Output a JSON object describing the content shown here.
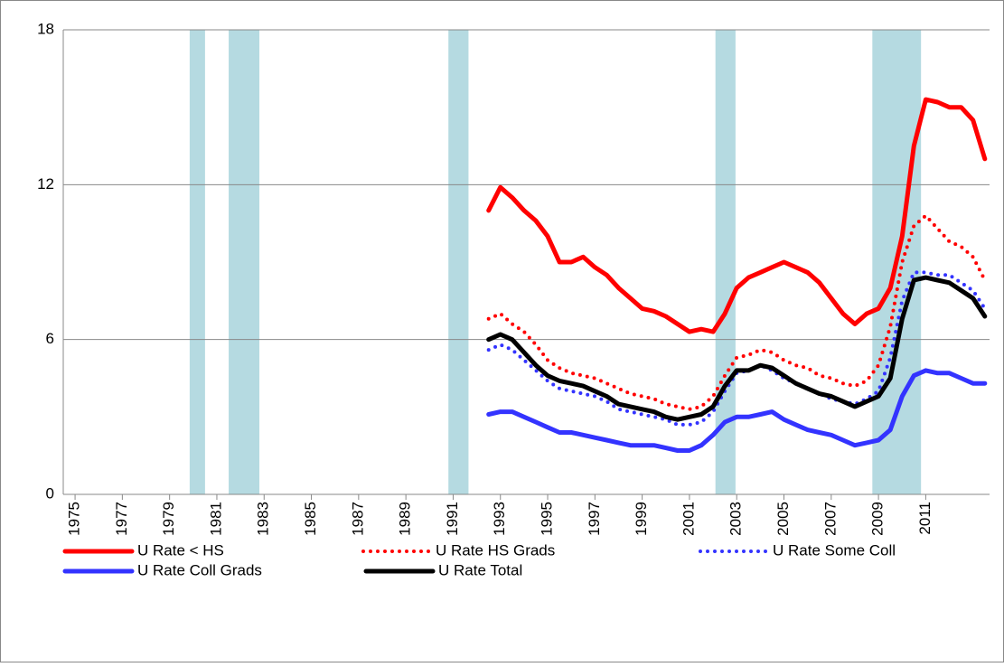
{
  "chart_data": {
    "type": "line",
    "x": [
      1992.5,
      1993,
      1993.5,
      1994,
      1994.5,
      1995,
      1995.5,
      1996,
      1996.5,
      1997,
      1997.5,
      1998,
      1998.5,
      1999,
      1999.5,
      2000,
      2000.5,
      2001,
      2001.5,
      2002,
      2002.5,
      2003,
      2003.5,
      2004,
      2004.5,
      2005,
      2005.5,
      2006,
      2006.5,
      2007,
      2007.5,
      2008,
      2008.5,
      2009,
      2009.5,
      2010,
      2010.5,
      2011,
      2011.5,
      2012,
      2012.5,
      2013,
      2013.5
    ],
    "series": [
      {
        "name": "U Rate < HS",
        "color": "#ff0000",
        "style": "solid",
        "values": [
          11.0,
          11.9,
          11.5,
          11.0,
          10.6,
          10.0,
          9.0,
          9.0,
          9.2,
          8.8,
          8.5,
          8.0,
          7.6,
          7.2,
          7.1,
          6.9,
          6.6,
          6.3,
          6.4,
          6.3,
          7.0,
          8.0,
          8.4,
          8.6,
          8.8,
          9.0,
          8.8,
          8.6,
          8.2,
          7.6,
          7.0,
          6.6,
          7.0,
          7.2,
          8.0,
          10.0,
          13.5,
          15.3,
          15.2,
          15.0,
          15.0,
          14.5,
          13.0
        ]
      },
      {
        "name": "U Rate HS Grads",
        "color": "#ff0000",
        "style": "dotted",
        "values": [
          6.8,
          7.0,
          6.6,
          6.3,
          5.8,
          5.2,
          4.9,
          4.7,
          4.6,
          4.5,
          4.3,
          4.1,
          3.9,
          3.8,
          3.7,
          3.5,
          3.4,
          3.3,
          3.4,
          3.8,
          4.6,
          5.3,
          5.4,
          5.6,
          5.5,
          5.2,
          5.0,
          4.9,
          4.6,
          4.5,
          4.3,
          4.2,
          4.4,
          5.0,
          6.5,
          9.0,
          10.4,
          10.8,
          10.3,
          9.8,
          9.6,
          9.2,
          8.3
        ]
      },
      {
        "name": "U Rate Some Coll",
        "color": "#3333ff",
        "style": "dotted",
        "values": [
          5.6,
          5.8,
          5.6,
          5.2,
          4.8,
          4.4,
          4.1,
          4.0,
          3.9,
          3.8,
          3.6,
          3.3,
          3.2,
          3.1,
          3.0,
          2.9,
          2.7,
          2.7,
          2.8,
          3.2,
          4.0,
          4.7,
          4.8,
          5.0,
          4.8,
          4.5,
          4.3,
          4.1,
          3.9,
          3.7,
          3.6,
          3.5,
          3.7,
          4.0,
          5.3,
          7.5,
          8.6,
          8.6,
          8.5,
          8.5,
          8.2,
          7.9,
          7.2
        ]
      },
      {
        "name": "U Rate Coll Grads",
        "color": "#3333ff",
        "style": "solid",
        "values": [
          3.1,
          3.2,
          3.2,
          3.0,
          2.8,
          2.6,
          2.4,
          2.4,
          2.3,
          2.2,
          2.1,
          2.0,
          1.9,
          1.9,
          1.9,
          1.8,
          1.7,
          1.7,
          1.9,
          2.3,
          2.8,
          3.0,
          3.0,
          3.1,
          3.2,
          2.9,
          2.7,
          2.5,
          2.4,
          2.3,
          2.1,
          1.9,
          2.0,
          2.1,
          2.5,
          3.8,
          4.6,
          4.8,
          4.7,
          4.7,
          4.5,
          4.3,
          4.3
        ]
      },
      {
        "name": "U Rate Total",
        "color": "#000000",
        "style": "solid",
        "values": [
          6.0,
          6.2,
          6.0,
          5.5,
          5.0,
          4.6,
          4.4,
          4.3,
          4.2,
          4.0,
          3.8,
          3.5,
          3.4,
          3.3,
          3.2,
          3.0,
          2.9,
          3.0,
          3.1,
          3.4,
          4.2,
          4.8,
          4.8,
          5.0,
          4.9,
          4.6,
          4.3,
          4.1,
          3.9,
          3.8,
          3.6,
          3.4,
          3.6,
          3.8,
          4.5,
          6.8,
          8.3,
          8.4,
          8.3,
          8.2,
          7.9,
          7.6,
          6.9
        ]
      }
    ],
    "shaded_periods": [
      [
        1979.85,
        1980.5
      ],
      [
        1981.5,
        1982.8
      ],
      [
        1990.8,
        1991.65
      ],
      [
        2002.1,
        2002.95
      ],
      [
        2008.74,
        2010.8
      ]
    ],
    "shade_color": "#a8d4dc",
    "xlim": [
      1974.5,
      2013.7
    ],
    "xticks": [
      1975,
      1977,
      1979,
      1981,
      1983,
      1985,
      1987,
      1989,
      1991,
      1993,
      1995,
      1997,
      1999,
      2001,
      2003,
      2005,
      2007,
      2009,
      2011
    ],
    "ylim": [
      0,
      18
    ],
    "yticks": [
      0,
      6,
      12,
      18
    ],
    "grid": true
  }
}
